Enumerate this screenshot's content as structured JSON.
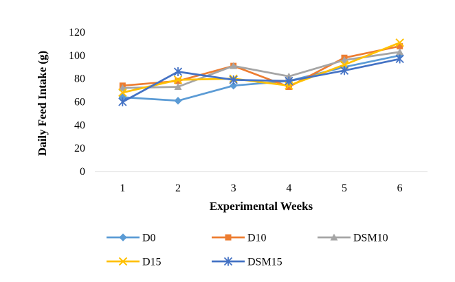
{
  "chart_data": {
    "type": "line",
    "title": "",
    "xlabel": "Experimental Weeks",
    "ylabel": "Daily Feed Intake (g)",
    "categories": [
      "1",
      "2",
      "3",
      "4",
      "5",
      "6"
    ],
    "ylim": [
      0,
      120
    ],
    "yticks": [
      0,
      20,
      40,
      60,
      80,
      100,
      120
    ],
    "grid": false,
    "legend_position": "bottom",
    "series": [
      {
        "name": "D0",
        "color": "#5B9BD5",
        "marker": "diamond",
        "values": [
          64,
          61,
          74,
          78,
          90,
          100
        ]
      },
      {
        "name": "D10",
        "color": "#ED7D31",
        "marker": "square",
        "values": [
          74,
          78,
          91,
          73,
          98,
          108
        ]
      },
      {
        "name": "DSM10",
        "color": "#A5A5A5",
        "marker": "triangle",
        "values": [
          72,
          73,
          91,
          82,
          96,
          103
        ]
      },
      {
        "name": "D15",
        "color": "#FFC000",
        "marker": "x",
        "values": [
          68,
          79,
          80,
          74,
          92,
          111
        ]
      },
      {
        "name": "DSM15",
        "color": "#4472C4",
        "marker": "star",
        "values": [
          60,
          86,
          79,
          78,
          87,
          97
        ]
      }
    ]
  }
}
